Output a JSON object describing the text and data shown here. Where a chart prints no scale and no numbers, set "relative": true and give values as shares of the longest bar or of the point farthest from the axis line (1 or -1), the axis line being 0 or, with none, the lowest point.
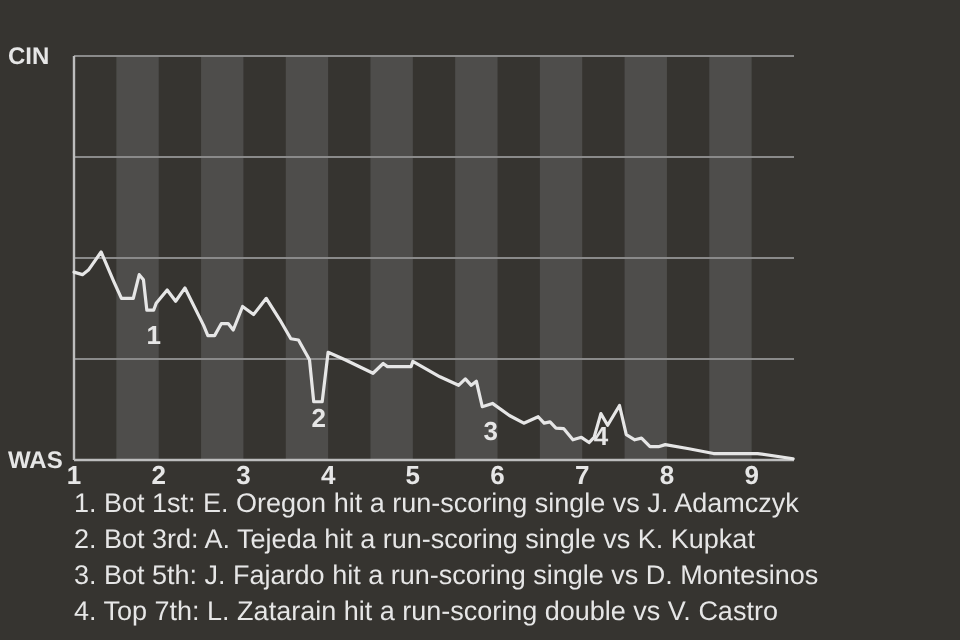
{
  "chart_data": {
    "type": "line",
    "relative": true,
    "x": [
      1,
      1.1,
      1.17,
      1.32,
      1.47,
      1.56,
      1.7,
      1.77,
      1.82,
      1.86,
      1.94,
      1.97,
      2.1,
      2.2,
      2.31,
      2.53,
      2.58,
      2.66,
      2.74,
      2.82,
      2.88,
      2.99,
      3.12,
      3.27,
      3.43,
      3.56,
      3.65,
      3.78,
      3.83,
      3.93,
      4,
      4.2,
      4.53,
      4.65,
      4.7,
      4.98,
      5,
      5.32,
      5.54,
      5.62,
      5.69,
      5.75,
      5.82,
      5.94,
      6.14,
      6.31,
      6.48,
      6.55,
      6.62,
      6.69,
      6.78,
      6.89,
      6.99,
      7.08,
      7.14,
      7.22,
      7.3,
      7.44,
      7.52,
      7.62,
      7.7,
      7.8,
      7.9,
      7.98,
      8.26,
      8.55,
      9.07,
      9.49
    ],
    "series": [
      {
        "color": "#e6e6e6",
        "values": [
          0.903,
          0.891,
          0.913,
          1,
          0.858,
          0.777,
          0.777,
          0.891,
          0.866,
          0.72,
          0.72,
          0.753,
          0.817,
          0.763,
          0.827,
          0.647,
          0.598,
          0.598,
          0.656,
          0.656,
          0.625,
          0.738,
          0.699,
          0.777,
          0.674,
          0.583,
          0.577,
          0.482,
          0.28,
          0.28,
          0.518,
          0.482,
          0.417,
          0.464,
          0.449,
          0.449,
          0.474,
          0.4,
          0.359,
          0.39,
          0.359,
          0.379,
          0.256,
          0.272,
          0.214,
          0.177,
          0.208,
          0.177,
          0.183,
          0.153,
          0.151,
          0.097,
          0.109,
          0.084,
          0.109,
          0.223,
          0.167,
          0.262,
          0.122,
          0.097,
          0.105,
          0.064,
          0.064,
          0.074,
          0.054,
          0.031,
          0.031,
          0.006
        ]
      }
    ],
    "xlim": [
      1,
      9.5
    ],
    "xticks": [
      1,
      2,
      3,
      4,
      5,
      6,
      7,
      8,
      9
    ],
    "marker": "none",
    "line_style": "solid",
    "ref_lines": [
      {
        "axis": "y",
        "value": 0.485
      },
      {
        "axis": "y",
        "value": 0.971
      },
      {
        "axis": "y",
        "value": 1.456
      },
      {
        "axis": "y",
        "value": 1.942,
        "label": "CIN"
      }
    ],
    "bands": [
      {
        "axis": "x",
        "from": 1.5,
        "to": 2,
        "color": "#4e4d4b"
      },
      {
        "axis": "x",
        "from": 2.5,
        "to": 3,
        "color": "#4e4d4b"
      },
      {
        "axis": "x",
        "from": 3.5,
        "to": 4,
        "color": "#4e4d4b"
      },
      {
        "axis": "x",
        "from": 4.5,
        "to": 5,
        "color": "#4e4d4b"
      },
      {
        "axis": "x",
        "from": 5.5,
        "to": 6,
        "color": "#4e4d4b"
      },
      {
        "axis": "x",
        "from": 6.5,
        "to": 7,
        "color": "#4e4d4b"
      },
      {
        "axis": "x",
        "from": 7.5,
        "to": 8,
        "color": "#4e4d4b"
      },
      {
        "axis": "x",
        "from": 8.5,
        "to": 9,
        "color": "#4e4d4b"
      }
    ],
    "annotations": [
      {
        "text": "1",
        "x": 1.94,
        "y": 0.6
      },
      {
        "text": "2",
        "x": 3.89,
        "y": 0.2
      },
      "WAS",
      {
        "text": "3",
        "x": 5.92,
        "y": 0.14
      },
      {
        "text": "4",
        "x": 7.22,
        "y": 0.117
      },
      "1. Bot 1st: E. Oregon hit a run-scoring single vs J. Adamczyk",
      "2. Bot 3rd: A. Tejeda hit a run-scoring single vs K. Kupkat",
      "3. Bot 5th: J. Fajardo hit a run-scoring single vs D. Montesinos",
      "4. Top 7th: L. Zatarain hit a run-scoring double vs V. Castro"
    ]
  }
}
